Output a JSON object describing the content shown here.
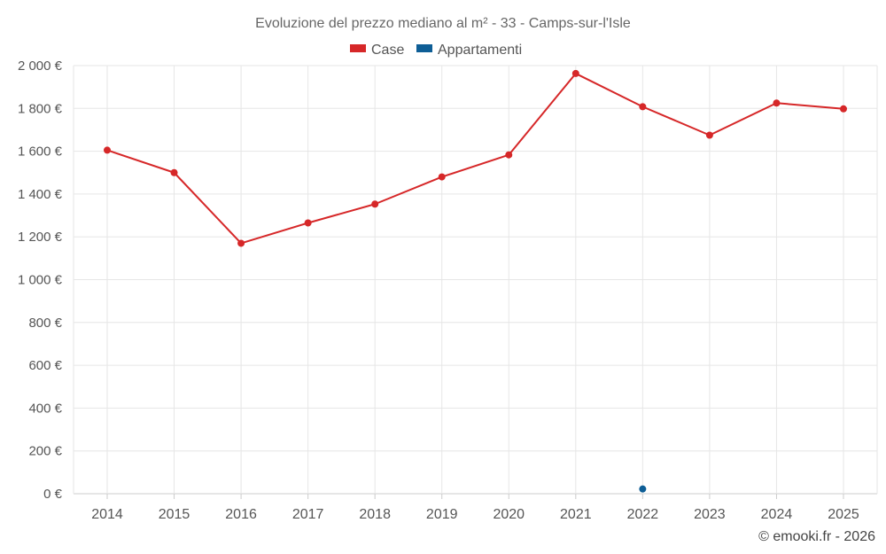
{
  "chart_data": {
    "type": "line",
    "title": "Evoluzione del prezzo mediano al m² - 33 - Camps-sur-l'Isle",
    "categories": [
      "2014",
      "2015",
      "2016",
      "2017",
      "2018",
      "2019",
      "2020",
      "2021",
      "2022",
      "2023",
      "2024",
      "2025"
    ],
    "y_ticks": [
      "0 €",
      "200 €",
      "400 €",
      "600 €",
      "800 €",
      "1 000 €",
      "1 200 €",
      "1 400 €",
      "1 600 €",
      "1 800 €",
      "2 000 €"
    ],
    "ylim": [
      0,
      2000
    ],
    "xlabel": "",
    "ylabel": "",
    "grid": true,
    "legend_position": "top-center",
    "series": [
      {
        "name": "Case",
        "color": "#d62728",
        "values": [
          1605,
          1500,
          1170,
          1265,
          1353,
          1480,
          1583,
          1963,
          1808,
          1675,
          1825,
          1798
        ]
      },
      {
        "name": "Appartamenti",
        "color": "#0e5e96",
        "values": [
          null,
          null,
          null,
          null,
          null,
          null,
          null,
          null,
          22,
          null,
          null,
          null
        ]
      }
    ]
  },
  "credit": "© emooki.fr - 2026"
}
